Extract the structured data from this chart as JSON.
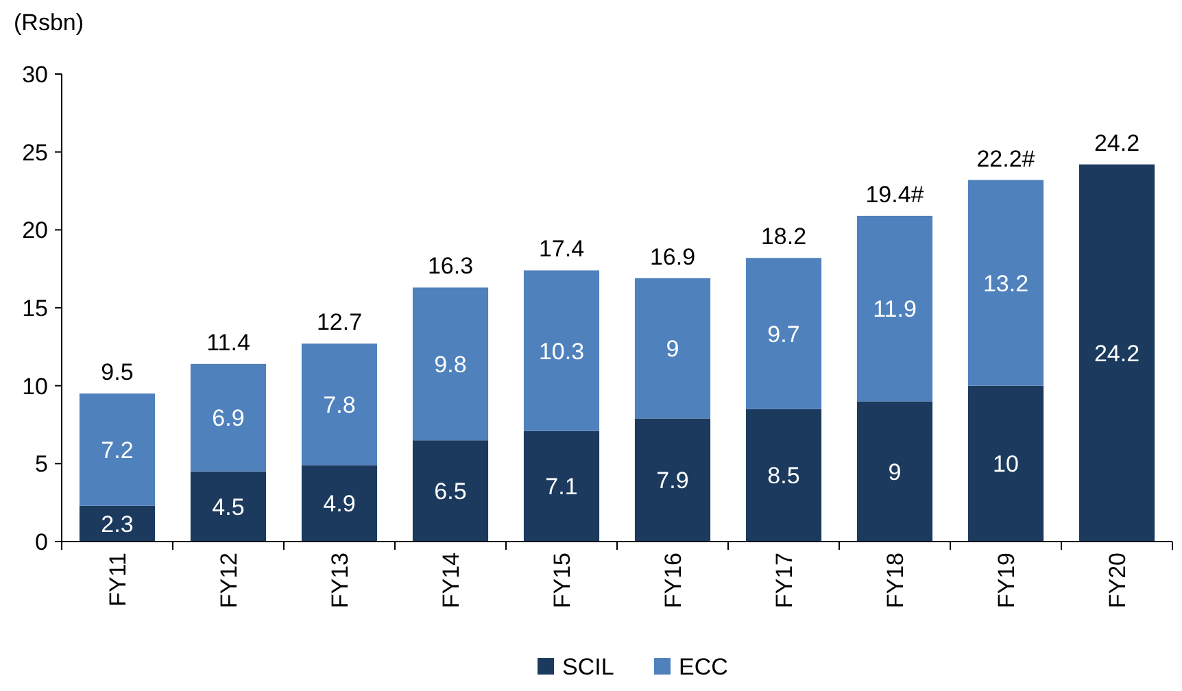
{
  "chart_data": {
    "type": "bar",
    "stacked": true,
    "ylabel": "(Rsbn)",
    "categories": [
      "FY11",
      "FY12",
      "FY13",
      "FY14",
      "FY15",
      "FY16",
      "FY17",
      "FY18",
      "FY19",
      "FY20"
    ],
    "series": [
      {
        "name": "SCIL",
        "color": "#1b3a5e",
        "values": [
          2.3,
          4.5,
          4.9,
          6.5,
          7.1,
          7.9,
          8.5,
          9,
          10,
          24.2
        ]
      },
      {
        "name": "ECC",
        "color": "#4f81bd",
        "values": [
          7.2,
          6.9,
          7.8,
          9.8,
          10.3,
          9,
          9.7,
          11.9,
          13.2,
          null
        ]
      }
    ],
    "totals": [
      "9.5",
      "11.4",
      "12.7",
      "16.3",
      "17.4",
      "16.9",
      "18.2",
      null,
      null,
      "24.2"
    ],
    "annotations": [
      {
        "text": "19.4#",
        "x": "FY18",
        "y": 20.9
      },
      {
        "text": "22.2#",
        "x": "FY19",
        "y": 23.2
      }
    ],
    "ylim": [
      0,
      30
    ],
    "yticks": [
      0,
      5,
      10,
      15,
      20,
      25,
      30
    ],
    "data_labels": true,
    "legend": "bottom",
    "grid": false
  }
}
